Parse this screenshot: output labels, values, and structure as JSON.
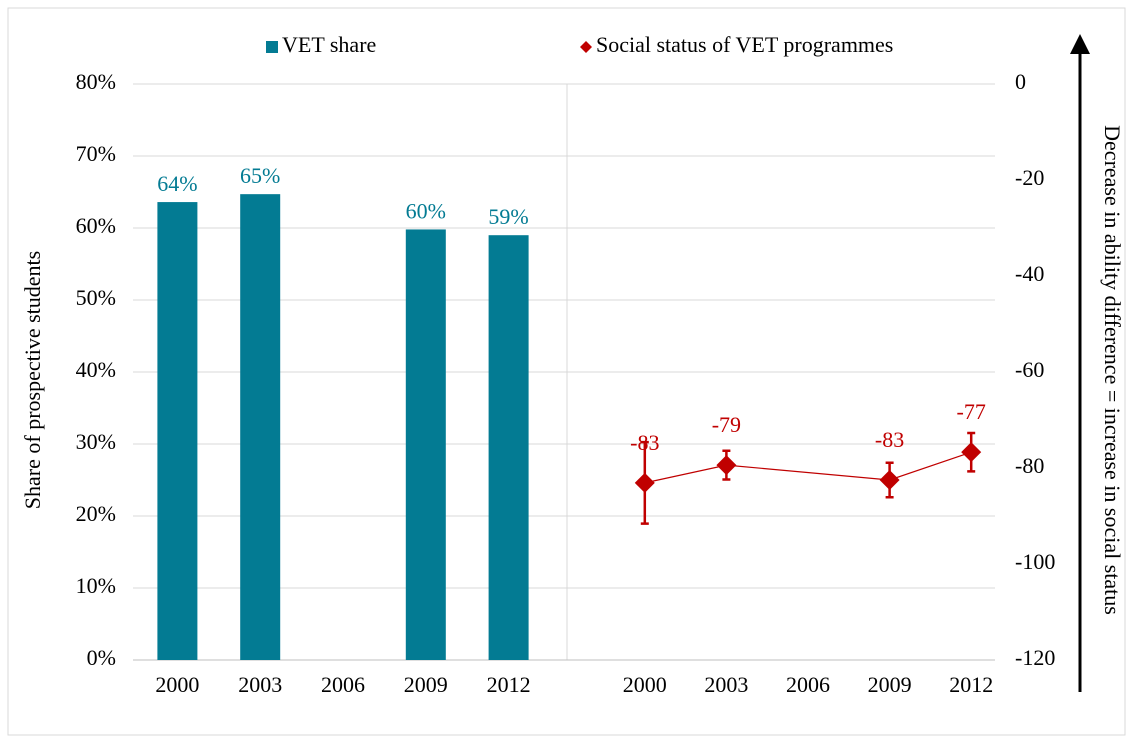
{
  "chart_data": {
    "type": "combo",
    "categories": [
      "2000",
      "2003",
      "2006",
      "2009",
      "2012"
    ],
    "ylabel": "Share of prospective students",
    "y2label": "Decrease in ability difference = increase in social status",
    "ylim": [
      0,
      80
    ],
    "yticks": [
      {
        "value": 0,
        "label": "0%"
      },
      {
        "value": 10,
        "label": "10%"
      },
      {
        "value": 20,
        "label": "20%"
      },
      {
        "value": 30,
        "label": "30%"
      },
      {
        "value": 40,
        "label": "40%"
      },
      {
        "value": 50,
        "label": "50%"
      },
      {
        "value": 60,
        "label": "60%"
      },
      {
        "value": 70,
        "label": "70%"
      },
      {
        "value": 80,
        "label": "80%"
      }
    ],
    "y2lim": [
      -120,
      0
    ],
    "y2ticks": [
      -120,
      -100,
      -80,
      -60,
      -40,
      -20,
      0
    ],
    "grid": true,
    "connect_gaps": true,
    "series": [
      {
        "name": "VET share",
        "type": "bar",
        "color": "#037b93",
        "values": [
          63.6,
          64.7,
          null,
          59.8,
          59.0
        ],
        "value_labels": [
          "64%",
          "65%",
          null,
          "60%",
          "59%"
        ]
      },
      {
        "name": "Social status of VET programmes",
        "type": "line",
        "axis": "y2",
        "color": "#c00000",
        "values": [
          -83.1,
          -79.4,
          null,
          -82.5,
          -76.7
        ],
        "errors": [
          8.5,
          3.0,
          null,
          3.6,
          4.0
        ],
        "value_labels": [
          "-83",
          "-79",
          null,
          "-83",
          "-77"
        ]
      }
    ]
  }
}
